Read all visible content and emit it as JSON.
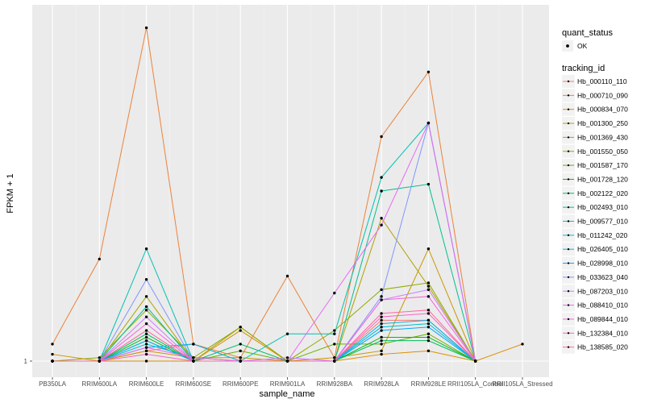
{
  "chart_data": {
    "type": "line",
    "xlabel": "sample_name",
    "ylabel": "FPKM + 1",
    "y_tick_labels": [
      "1"
    ],
    "ylim": [
      0,
      100
    ],
    "categories": [
      "PB350LA",
      "RRIM600LA",
      "RRIM600LE",
      "RRIM600SE",
      "RRIM600PE",
      "RRIM901LA",
      "RRIM928BA",
      "RRIM928LA",
      "RRIM928LE",
      "RRII105LA_Control",
      "RRII105LA_Stressed"
    ],
    "grid": true,
    "legend_placement": "right",
    "legend_status": {
      "title": "quant_status",
      "items": [
        {
          "label": "OK"
        }
      ]
    },
    "legend_series_title": "tracking_id",
    "series": [
      {
        "name": "Hb_000110_110",
        "color": "#F8766D",
        "values": [
          0,
          0,
          3,
          5,
          0,
          0,
          0,
          12,
          12,
          0,
          null
        ]
      },
      {
        "name": "Hb_000710_090",
        "color": "#EC8239",
        "values": [
          5,
          30,
          98,
          5,
          1,
          25,
          1,
          66,
          85,
          0,
          null
        ]
      },
      {
        "name": "Hb_000834_070",
        "color": "#DB8E00",
        "values": [
          null,
          0,
          0,
          0,
          9,
          0,
          0,
          2,
          3,
          0,
          5
        ]
      },
      {
        "name": "Hb_001300_250",
        "color": "#C79800",
        "values": [
          2,
          0,
          3,
          1,
          1,
          0,
          1,
          3,
          33,
          0,
          null
        ]
      },
      {
        "name": "Hb_001369_430",
        "color": "#AEA200",
        "values": [
          0,
          0,
          19,
          0,
          10,
          0,
          0,
          42,
          22,
          0,
          null
        ]
      },
      {
        "name": "Hb_001550_050",
        "color": "#8FAA00",
        "values": [
          0,
          1,
          15,
          1,
          10,
          0,
          9,
          21,
          23,
          0,
          null
        ]
      },
      {
        "name": "Hb_001587_170",
        "color": "#64B200",
        "values": [
          0,
          0,
          6,
          0,
          3,
          0,
          5,
          5,
          8,
          0,
          null
        ]
      },
      {
        "name": "Hb_001728_120",
        "color": "#00B81B",
        "values": [
          0,
          0,
          7,
          0,
          0,
          0,
          0,
          7,
          7,
          0,
          null
        ]
      },
      {
        "name": "Hb_002122_020",
        "color": "#00BD5C",
        "values": [
          0,
          0,
          8,
          0,
          5,
          0,
          0,
          6,
          6,
          0,
          null
        ]
      },
      {
        "name": "Hb_002493_010",
        "color": "#00C08E",
        "values": [
          0,
          0,
          16,
          0,
          0,
          0,
          0,
          50,
          52,
          0,
          null
        ]
      },
      {
        "name": "Hb_009577_010",
        "color": "#00C1B2",
        "values": [
          0,
          0,
          33,
          0,
          0,
          8,
          8,
          54,
          70,
          0,
          null
        ]
      },
      {
        "name": "Hb_011242_020",
        "color": "#00BCD1",
        "values": [
          0,
          0,
          5,
          1,
          0,
          0,
          0,
          10,
          11,
          0,
          null
        ]
      },
      {
        "name": "Hb_026405_010",
        "color": "#00B5EA",
        "values": [
          0,
          0,
          4,
          5,
          0,
          0,
          0,
          11,
          12,
          0,
          null
        ]
      },
      {
        "name": "Hb_028998_010",
        "color": "#00A9FF",
        "values": [
          0,
          0,
          6,
          0,
          0,
          0,
          0,
          9,
          10,
          0,
          null
        ]
      },
      {
        "name": "Hb_033623_040",
        "color": "#7F96FF",
        "values": [
          0,
          0,
          24,
          0,
          0,
          0,
          0,
          19,
          70,
          0,
          null
        ]
      },
      {
        "name": "Hb_087203_010",
        "color": "#C77CFF",
        "values": [
          0,
          0,
          13,
          0,
          0,
          1,
          0,
          18,
          21,
          0,
          null
        ]
      },
      {
        "name": "Hb_088410_010",
        "color": "#E76BF3",
        "values": [
          0,
          0,
          4,
          1,
          0,
          0,
          20,
          40,
          70,
          0,
          null
        ]
      },
      {
        "name": "Hb_089844_010",
        "color": "#F962DD",
        "values": [
          0,
          0,
          11,
          0,
          0,
          0,
          0,
          18,
          19,
          0,
          null
        ]
      },
      {
        "name": "Hb_132384_010",
        "color": "#FF61C3",
        "values": [
          0,
          0,
          2,
          0,
          0,
          0,
          0,
          13,
          14,
          0,
          null
        ]
      },
      {
        "name": "Hb_138585_020",
        "color": "#FF67A4",
        "values": [
          0,
          0,
          9,
          0,
          0,
          0,
          0,
          14,
          15,
          0,
          null
        ]
      }
    ]
  }
}
